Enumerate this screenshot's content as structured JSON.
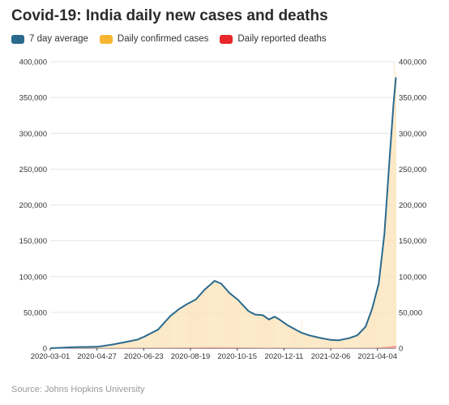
{
  "title": "Covid-19: India daily new cases and deaths",
  "legend": [
    {
      "label": "7 day average",
      "color": "#2a6a8e"
    },
    {
      "label": "Daily confirmed cases",
      "color": "#f7b531"
    },
    {
      "label": "Daily reported deaths",
      "color": "#e8282b"
    }
  ],
  "source": "Source: Johns Hopkins University",
  "chart_data": {
    "type": "bar",
    "x_ticks": [
      "2020-03-01",
      "2020-04-27",
      "2020-06-23",
      "2020-08-19",
      "2020-10-15",
      "2020-12-11",
      "2021-02-06",
      "2021-04-04"
    ],
    "y_ticks": [
      "400,000",
      "350,000",
      "300,000",
      "250,000",
      "200,000",
      "150,000",
      "100,000",
      "50,000",
      "0"
    ],
    "ylim": [
      0,
      400000
    ],
    "xlim": [
      "2020-03-01",
      "2021-04-26"
    ],
    "grid": true,
    "series": [
      {
        "name": "7 day average",
        "type": "line",
        "points": [
          [
            "2020-03-01",
            0
          ],
          [
            "2020-04-01",
            1500
          ],
          [
            "2020-04-27",
            2000
          ],
          [
            "2020-05-15",
            5000
          ],
          [
            "2020-05-31",
            8500
          ],
          [
            "2020-06-15",
            12000
          ],
          [
            "2020-06-23",
            16000
          ],
          [
            "2020-07-10",
            26000
          ],
          [
            "2020-07-25",
            45000
          ],
          [
            "2020-08-05",
            55000
          ],
          [
            "2020-08-15",
            62000
          ],
          [
            "2020-08-25",
            68000
          ],
          [
            "2020-09-05",
            82000
          ],
          [
            "2020-09-17",
            94000
          ],
          [
            "2020-09-25",
            90000
          ],
          [
            "2020-10-05",
            77000
          ],
          [
            "2020-10-15",
            68000
          ],
          [
            "2020-10-28",
            52000
          ],
          [
            "2020-11-05",
            47000
          ],
          [
            "2020-11-15",
            46000
          ],
          [
            "2020-11-22",
            40000
          ],
          [
            "2020-11-29",
            44000
          ],
          [
            "2020-12-05",
            40000
          ],
          [
            "2020-12-15",
            32000
          ],
          [
            "2020-12-31",
            22000
          ],
          [
            "2021-01-10",
            18000
          ],
          [
            "2021-01-25",
            14000
          ],
          [
            "2021-02-06",
            11500
          ],
          [
            "2021-02-15",
            11000
          ],
          [
            "2021-02-28",
            14000
          ],
          [
            "2021-03-10",
            18000
          ],
          [
            "2021-03-20",
            30000
          ],
          [
            "2021-03-28",
            55000
          ],
          [
            "2021-04-05",
            90000
          ],
          [
            "2021-04-12",
            160000
          ],
          [
            "2021-04-18",
            260000
          ],
          [
            "2021-04-23",
            340000
          ],
          [
            "2021-04-26",
            378000
          ]
        ]
      },
      {
        "name": "Daily confirmed cases",
        "type": "bar",
        "notable_values": [
          [
            "2020-09-16",
            97000
          ],
          [
            "2021-01-01",
            38000
          ],
          [
            "2021-04-24",
            400000
          ]
        ]
      },
      {
        "name": "Daily reported deaths",
        "type": "bar",
        "notable_values": [
          [
            "2020-09-17",
            1200
          ],
          [
            "2021-04-25",
            3500
          ]
        ]
      }
    ]
  }
}
